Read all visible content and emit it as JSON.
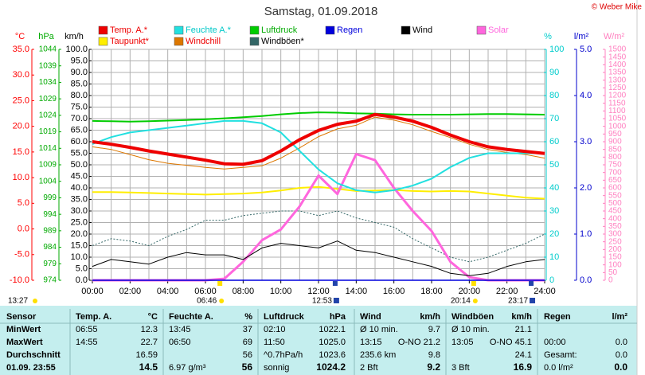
{
  "chart_data": {
    "type": "line",
    "title": "Samstag, 01.09.2018",
    "credit": "© Weber Mike",
    "current_time": "13:27",
    "x": [
      0,
      1,
      2,
      3,
      4,
      5,
      6,
      7,
      8,
      9,
      10,
      11,
      12,
      13,
      14,
      15,
      16,
      17,
      18,
      19,
      20,
      21,
      22,
      23,
      24
    ],
    "xlim": [
      0,
      24
    ],
    "xticks": [
      {
        "value": 0,
        "label": "00:00"
      },
      {
        "value": 2,
        "label": "02:00"
      },
      {
        "value": 4,
        "label": "04:00"
      },
      {
        "value": 6,
        "label": "06:00"
      },
      {
        "value": 8,
        "label": "08:00"
      },
      {
        "value": 10,
        "label": "10:00"
      },
      {
        "value": 12,
        "label": "12:00"
      },
      {
        "value": 14,
        "label": "14:00"
      },
      {
        "value": 16,
        "label": "16:00"
      },
      {
        "value": 18,
        "label": "18:00"
      },
      {
        "value": 20,
        "label": "20:00"
      },
      {
        "value": 22,
        "label": "22:00"
      },
      {
        "value": 24,
        "label": "24:00"
      }
    ],
    "grid": true,
    "axes": {
      "temp": {
        "unit": "°C",
        "color": "#ff0000",
        "lim": [
          -10,
          35
        ],
        "ticks": [
          {
            "value": -10,
            "label": "-10.0"
          },
          {
            "value": -5,
            "label": "-5.0"
          },
          {
            "value": 0,
            "label": "0.0"
          },
          {
            "value": 5,
            "label": "5.0"
          },
          {
            "value": 10,
            "label": "10.0"
          },
          {
            "value": 15,
            "label": "15.0"
          },
          {
            "value": 20,
            "label": "20.0"
          },
          {
            "value": 25,
            "label": "25.0"
          },
          {
            "value": 30,
            "label": "30.0"
          },
          {
            "value": 35,
            "label": "35.0"
          }
        ]
      },
      "hpa": {
        "unit": "hPa",
        "color": "#00aa00",
        "lim": [
          974,
          1044
        ],
        "ticks": [
          974,
          979,
          984,
          989,
          994,
          999,
          1004,
          1009,
          1014,
          1019,
          1024,
          1029,
          1034,
          1039,
          1044
        ]
      },
      "kmh": {
        "unit": "km/h",
        "color": "#000000",
        "lim": [
          0,
          100
        ],
        "ticks": [
          {
            "value": 0,
            "label": "0.0"
          },
          {
            "value": 5,
            "label": "5.0"
          },
          {
            "value": 10,
            "label": "10.0"
          },
          {
            "value": 15,
            "label": "15.0"
          },
          {
            "value": 20,
            "label": "20.0"
          },
          {
            "value": 25,
            "label": "25.0"
          },
          {
            "value": 30,
            "label": "30.0"
          },
          {
            "value": 35,
            "label": "35.0"
          },
          {
            "value": 40,
            "label": "40.0"
          },
          {
            "value": 45,
            "label": "45.0"
          },
          {
            "value": 50,
            "label": "50.0"
          },
          {
            "value": 55,
            "label": "55.0"
          },
          {
            "value": 60,
            "label": "60.0"
          },
          {
            "value": 65,
            "label": "65.0"
          },
          {
            "value": 70,
            "label": "70.0"
          },
          {
            "value": 75,
            "label": "75.0"
          },
          {
            "value": 80,
            "label": "80.0"
          },
          {
            "value": 85,
            "label": "85.0"
          },
          {
            "value": 90,
            "label": "90.0"
          },
          {
            "value": 95,
            "label": "95.0"
          },
          {
            "value": 100,
            "label": "100.0"
          }
        ]
      },
      "pct": {
        "unit": "%",
        "color": "#00cccc",
        "lim": [
          0,
          100
        ],
        "ticks": [
          0,
          10,
          20,
          30,
          40,
          50,
          60,
          70,
          80,
          90,
          100
        ]
      },
      "rain": {
        "unit": "l/m²",
        "color": "#0000cc",
        "lim": [
          0,
          5
        ],
        "ticks": [
          {
            "value": 0,
            "label": "0.0"
          },
          {
            "value": 1,
            "label": "1.0"
          },
          {
            "value": 2,
            "label": "2.0"
          },
          {
            "value": 3,
            "label": "3.0"
          },
          {
            "value": 4,
            "label": "4.0"
          },
          {
            "value": 5,
            "label": "5.0"
          }
        ]
      },
      "solar": {
        "unit": "W/m²",
        "color": "#ff80c0",
        "lim": [
          0,
          1500
        ],
        "ticks": [
          0,
          50,
          100,
          150,
          200,
          250,
          300,
          350,
          400,
          450,
          500,
          550,
          600,
          650,
          700,
          750,
          800,
          850,
          900,
          950,
          1000,
          1050,
          1100,
          1150,
          1200,
          1250,
          1300,
          1350,
          1400,
          1450,
          1500
        ]
      }
    },
    "series": [
      {
        "name": "Temp. A.*",
        "color": "#ee0000",
        "text_color": "#ee0000",
        "axis": "temp",
        "width": 4,
        "values": [
          17.0,
          16.5,
          15.9,
          15.2,
          14.6,
          14.0,
          13.4,
          12.7,
          12.6,
          13.3,
          15.2,
          17.4,
          19.2,
          20.4,
          21.0,
          22.3,
          21.8,
          21.0,
          19.8,
          18.3,
          17.0,
          16.0,
          15.5,
          15.1,
          14.7
        ]
      },
      {
        "name": "Feuchte A.*",
        "color": "#22e0e0",
        "text_color": "#00c8c8",
        "axis": "pct",
        "width": 2,
        "values": [
          59,
          62,
          64,
          65,
          66,
          67,
          68,
          69,
          69,
          68,
          64,
          56,
          48,
          42,
          39,
          38,
          39,
          41,
          44,
          49,
          53,
          55,
          55,
          55,
          55
        ]
      },
      {
        "name": "Luftdruck",
        "color": "#00cc00",
        "text_color": "#00aa00",
        "axis": "hpa",
        "width": 2,
        "values": [
          1022.3,
          1022.2,
          1022.1,
          1022.2,
          1022.4,
          1022.6,
          1022.8,
          1023.1,
          1023.4,
          1023.8,
          1024.3,
          1024.7,
          1024.9,
          1024.8,
          1024.6,
          1024.5,
          1024.3,
          1024.2,
          1024.2,
          1024.2,
          1024.3,
          1024.4,
          1024.4,
          1024.3,
          1024.2
        ]
      },
      {
        "name": "Regen",
        "color": "#0000dd",
        "text_color": "#0000dd",
        "axis": "rain",
        "width": 1.5,
        "values": [
          0,
          0,
          0,
          0,
          0,
          0,
          0,
          0,
          0,
          0,
          0,
          0,
          0,
          0,
          0,
          0,
          0,
          0,
          0,
          0,
          0,
          0,
          0,
          0,
          0
        ]
      },
      {
        "name": "Wind",
        "color": "#000000",
        "text_color": "#000000",
        "axis": "kmh",
        "width": 1,
        "values": [
          6,
          9,
          8,
          7,
          10,
          12,
          11,
          11,
          9,
          14,
          16,
          15,
          14,
          17,
          13,
          12,
          10,
          8,
          6,
          3,
          2,
          3,
          6,
          8,
          9
        ]
      },
      {
        "name": "Solar",
        "color": "#ff66dd",
        "text_color": "#ff66dd",
        "axis": "solar",
        "width": 3,
        "values": [
          0,
          0,
          0,
          0,
          0,
          0,
          0,
          10,
          120,
          260,
          330,
          480,
          680,
          560,
          820,
          780,
          600,
          450,
          320,
          120,
          20,
          0,
          0,
          0,
          0
        ]
      },
      {
        "name": "Taupunkt*",
        "color": "#ffee00",
        "text_color": "#ee0000",
        "axis": "temp",
        "width": 2,
        "values": [
          7.2,
          7.2,
          7.1,
          7.0,
          6.9,
          6.8,
          6.7,
          6.8,
          6.9,
          7.1,
          7.5,
          8.0,
          8.2,
          7.8,
          7.4,
          7.5,
          7.6,
          7.4,
          7.3,
          7.4,
          7.3,
          6.9,
          6.5,
          6.1,
          5.9
        ]
      },
      {
        "name": "Windchill",
        "color": "#dd7700",
        "text_color": "#ee0000",
        "axis": "temp",
        "width": 1,
        "values": [
          16.0,
          15.5,
          14.5,
          13.5,
          12.8,
          12.4,
          12.0,
          11.7,
          12.0,
          12.3,
          13.8,
          15.8,
          18.0,
          19.5,
          20.2,
          21.8,
          21.2,
          20.3,
          19.0,
          17.8,
          16.5,
          15.5,
          14.9,
          14.5,
          13.8
        ]
      },
      {
        "name": "Windböen*",
        "color": "#336666",
        "text_color": "#000000",
        "axis": "kmh",
        "width": 1,
        "dashed": true,
        "values": [
          15,
          18,
          17,
          15,
          19,
          22,
          26,
          26,
          28,
          29,
          30,
          30,
          28,
          30,
          27,
          25,
          23,
          18,
          14,
          10,
          8,
          10,
          13,
          16,
          20
        ]
      }
    ],
    "markers": [
      {
        "label": "06:46",
        "x": 6.767,
        "icon": "sun"
      },
      {
        "label": "12:53",
        "x": 12.883,
        "icon": "moon"
      },
      {
        "label": "20:14",
        "x": 20.233,
        "icon": "sun"
      },
      {
        "label": "23:17",
        "x": 23.283,
        "icon": "moon"
      }
    ]
  },
  "table": {
    "header": [
      "Sensor",
      "Temp. A.",
      "°C",
      "Feuchte A.",
      "%",
      "Luftdruck",
      "hPa",
      "Wind",
      "km/h",
      "Windböen",
      "km/h",
      "Regen",
      "l/m²"
    ],
    "rows": [
      [
        "MinWert",
        "06:55",
        "12.3",
        "13:45",
        "37",
        "02:10",
        "1022.1",
        "Ø 10 min.",
        "9.7",
        "Ø 10 min.",
        "21.1",
        null,
        null
      ],
      [
        "MaxWert",
        "14:55",
        "22.7",
        "06:50",
        "69",
        "11:50",
        "1025.0",
        "13:15",
        "O-NO 21.2",
        "13:05",
        "O-NO 45.1",
        "00:00",
        "0.0"
      ],
      [
        "Durchschnitt",
        null,
        "16.59",
        null,
        "56",
        "^0.7hPa/h",
        "1023.6",
        "235.6 km",
        "9.8",
        null,
        "24.1",
        "Gesamt:",
        "0.0"
      ],
      [
        "01.09. 23:55",
        null,
        "14.5",
        "6.97 g/m³",
        "56",
        "sonnig",
        "1024.2",
        "2 Bft",
        "9.2",
        "3 Bft",
        "16.9",
        "0.0 l/m²",
        "0.0"
      ]
    ]
  }
}
